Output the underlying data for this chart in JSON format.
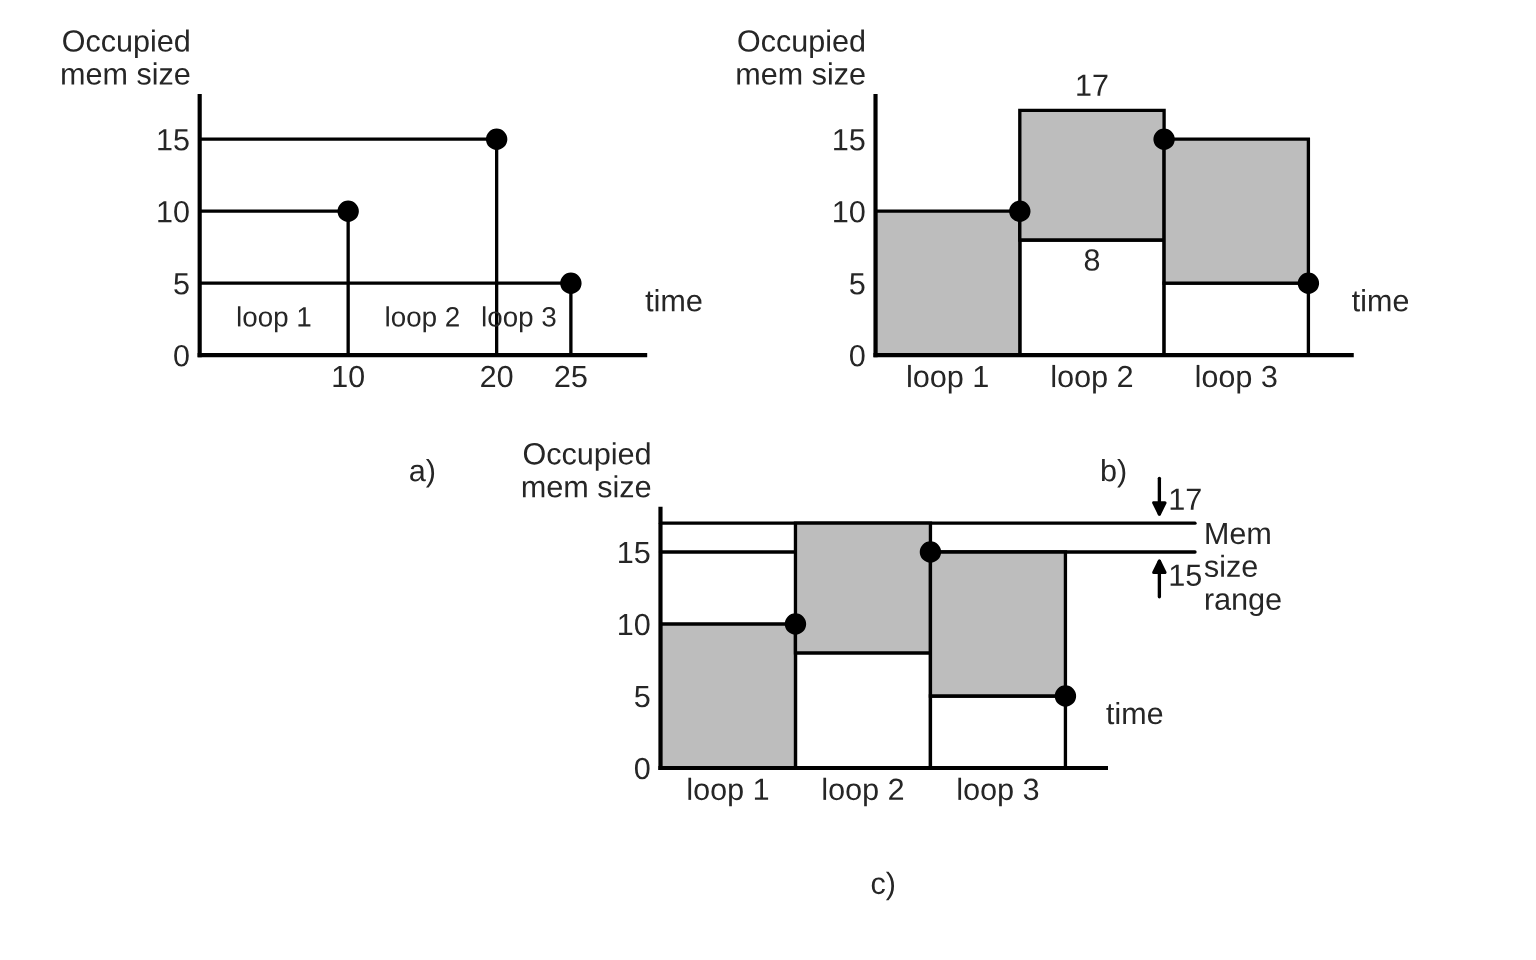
{
  "chart_data": [
    {
      "type": "scatter",
      "title": "a)",
      "xlabel": "time",
      "ylabel": "Occupied\nmem size",
      "series": [
        {
          "type": "line",
          "color": "#000000",
          "x": [
            0,
            10,
            10
          ],
          "values": [
            10,
            10,
            0
          ]
        },
        {
          "type": "line",
          "color": "#000000",
          "x": [
            0,
            20,
            20
          ],
          "values": [
            15,
            15,
            0
          ]
        },
        {
          "type": "line",
          "color": "#000000",
          "x": [
            0,
            25,
            25
          ],
          "values": [
            5,
            5,
            0
          ]
        },
        {
          "type": "scatter",
          "color": "#000000",
          "marker": "circle",
          "x": [
            10,
            20,
            25
          ],
          "values": [
            10,
            15,
            5
          ]
        }
      ],
      "xlim": [
        0,
        30
      ],
      "xticks": [
        10,
        20,
        25
      ],
      "ylim": [
        0,
        18
      ],
      "yticks": [
        0,
        5,
        10,
        15
      ],
      "annotations": [
        "loop 1",
        "loop 2",
        "loop 3"
      ]
    },
    {
      "type": "bar",
      "title": "b)",
      "xlabel": "time",
      "ylabel": "Occupied\nmem size",
      "categories": [
        null,
        "loop 1",
        null,
        "loop 2",
        null,
        "loop 3",
        null
      ],
      "stacked": true,
      "series": [
        {
          "color": "#ffffff",
          "values": [
            null,
            0,
            null,
            8,
            null,
            5,
            null
          ]
        },
        {
          "color": "#bdbdbd",
          "values": [
            null,
            10,
            null,
            9,
            null,
            10,
            null
          ]
        },
        {
          "type": "scatter",
          "color": "#000000",
          "marker": "circle",
          "values": [
            null,
            null,
            10,
            null,
            15,
            null,
            5
          ]
        }
      ],
      "ylim": [
        0,
        18
      ],
      "yticks": [
        0,
        5,
        10,
        15
      ],
      "annotations": [
        {
          "text": "17",
          "x": "loop 2",
          "y": 17
        },
        {
          "text": "8",
          "x": "loop 2",
          "y": 8
        }
      ]
    },
    {
      "type": "bar",
      "title": "c)",
      "xlabel": "time",
      "ylabel": "Occupied\nmem size",
      "categories": [
        null,
        "loop 1",
        null,
        "loop 2",
        null,
        "loop 3",
        null
      ],
      "stacked": true,
      "series": [
        {
          "color": "#ffffff",
          "values": [
            null,
            0,
            null,
            8,
            null,
            5,
            null
          ]
        },
        {
          "color": "#bdbdbd",
          "values": [
            null,
            10,
            null,
            9,
            null,
            10,
            null
          ]
        },
        {
          "type": "scatter",
          "color": "#000000",
          "marker": "circle",
          "values": [
            null,
            null,
            10,
            null,
            15,
            null,
            5
          ]
        }
      ],
      "ylim": [
        0,
        18
      ],
      "yticks": [
        0,
        5,
        10,
        15
      ],
      "ref_lines": [
        {
          "axis": "y",
          "value": 17,
          "label": "17"
        },
        {
          "axis": "y",
          "value": 15,
          "label": "15"
        }
      ],
      "annotations": [
        "Mem\nsize\nrange"
      ]
    }
  ]
}
